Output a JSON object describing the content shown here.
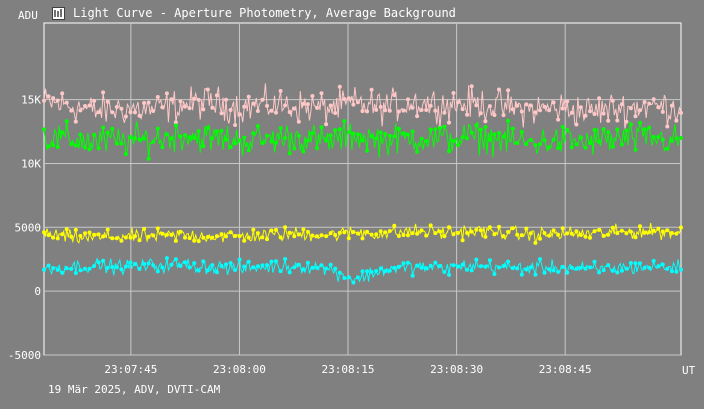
{
  "window": {
    "title": "Light Curve - Aperture Photometry, Average Background",
    "icon": "light-curve-app-icon"
  },
  "footer": {
    "caption": "19 Mär 2025, ADV, DVTI-CAM"
  },
  "chart_data": {
    "type": "scatter",
    "title": "Light Curve - Aperture Photometry, Average Background",
    "ylabel": "ADU",
    "xlabel": "UT",
    "x_start": "23:07:33",
    "x_end": "23:09:01",
    "ylim": [
      -5000,
      21000
    ],
    "grid": true,
    "y_ticks": [
      {
        "value": -5000,
        "label": "-5000"
      },
      {
        "value": 0,
        "label": "0"
      },
      {
        "value": 5000,
        "label": "5000"
      },
      {
        "value": 10000,
        "label": "10K"
      },
      {
        "value": 15000,
        "label": "15K"
      }
    ],
    "x_ticks": [
      {
        "time": "23:07:45",
        "label": "23:07:45"
      },
      {
        "time": "23:08:00",
        "label": "23:08:00"
      },
      {
        "time": "23:08:15",
        "label": "23:08:15"
      },
      {
        "time": "23:08:30",
        "label": "23:08:30"
      },
      {
        "time": "23:08:45",
        "label": "23:08:45"
      }
    ],
    "series": [
      {
        "color": "#ffc8c8",
        "times": [
          "23:07:33",
          "23:07:37",
          "23:07:40",
          "23:07:44",
          "23:07:48",
          "23:07:52",
          "23:07:56",
          "23:08:00",
          "23:08:04",
          "23:08:08",
          "23:08:12",
          "23:08:16",
          "23:08:20",
          "23:08:24",
          "23:08:28",
          "23:08:32",
          "23:08:36",
          "23:08:40",
          "23:08:44",
          "23:08:48",
          "23:08:52",
          "23:08:56",
          "23:09:00"
        ],
        "values": [
          14800,
          14500,
          14100,
          14300,
          14200,
          14600,
          14800,
          14400,
          14600,
          14500,
          14300,
          14700,
          14400,
          14800,
          14600,
          14700,
          14500,
          14200,
          14400,
          14100,
          14300,
          14500,
          14400
        ],
        "spread": 1400
      },
      {
        "color": "#00ff00",
        "times": [
          "23:07:33",
          "23:07:37",
          "23:07:40",
          "23:07:44",
          "23:07:48",
          "23:07:52",
          "23:07:56",
          "23:08:00",
          "23:08:04",
          "23:08:08",
          "23:08:12",
          "23:08:16",
          "23:08:20",
          "23:08:24",
          "23:08:28",
          "23:08:32",
          "23:08:36",
          "23:08:40",
          "23:08:44",
          "23:08:48",
          "23:08:52",
          "23:08:56",
          "23:09:00"
        ],
        "values": [
          12000,
          11900,
          11700,
          11800,
          11900,
          12200,
          12000,
          11800,
          11900,
          12100,
          11700,
          12200,
          11800,
          12000,
          11900,
          12100,
          11900,
          11600,
          11800,
          11700,
          11900,
          12000,
          11800
        ],
        "spread": 1300
      },
      {
        "color": "#ffff00",
        "times": [
          "23:07:33",
          "23:07:37",
          "23:07:40",
          "23:07:44",
          "23:07:48",
          "23:07:52",
          "23:07:56",
          "23:08:00",
          "23:08:04",
          "23:08:08",
          "23:08:12",
          "23:08:16",
          "23:08:20",
          "23:08:24",
          "23:08:28",
          "23:08:32",
          "23:08:36",
          "23:08:40",
          "23:08:44",
          "23:08:48",
          "23:08:52",
          "23:08:56",
          "23:09:00"
        ],
        "values": [
          4500,
          4200,
          4200,
          4300,
          4300,
          4400,
          4300,
          4300,
          4400,
          4500,
          4400,
          4600,
          4500,
          4700,
          4600,
          4700,
          4600,
          4400,
          4500,
          4500,
          4600,
          4700,
          4600
        ],
        "spread": 600
      },
      {
        "color": "#00ffff",
        "times": [
          "23:07:33",
          "23:07:37",
          "23:07:40",
          "23:07:44",
          "23:07:48",
          "23:07:52",
          "23:07:56",
          "23:08:00",
          "23:08:04",
          "23:08:08",
          "23:08:12",
          "23:08:16",
          "23:08:20",
          "23:08:24",
          "23:08:28",
          "23:08:32",
          "23:08:36",
          "23:08:40",
          "23:08:44",
          "23:08:48",
          "23:08:52",
          "23:08:56",
          "23:09:00"
        ],
        "values": [
          1800,
          1900,
          2000,
          1900,
          2000,
          2100,
          1900,
          1800,
          1900,
          2000,
          1800,
          900,
          1700,
          1900,
          1800,
          2000,
          1900,
          1800,
          1900,
          1700,
          1800,
          1900,
          1900
        ],
        "spread": 600
      }
    ]
  }
}
